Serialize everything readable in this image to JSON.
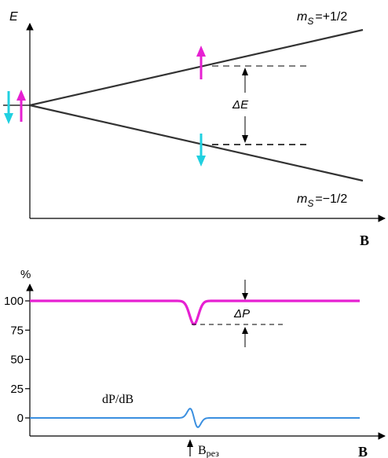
{
  "energy_diagram": {
    "y_axis_label": "E",
    "x_axis_label": "B",
    "upper_level": {
      "prefix": "m",
      "subscript": "S",
      "value": "=+1/2"
    },
    "lower_level": {
      "prefix": "m",
      "subscript": "S",
      "value": "=−1/2"
    },
    "gap_label": "ΔE",
    "colors": {
      "spin_up": "#e620d2",
      "spin_down": "#20d0e0",
      "lines": "#333333"
    }
  },
  "absorption_chart": {
    "y_unit_label": "%",
    "y_ticks": [
      "100",
      "75",
      "50",
      "25",
      "0"
    ],
    "x_axis_label": "B",
    "resonance_label": {
      "main": "B",
      "subscript": "рез"
    },
    "derivative_label": "dP/dB",
    "delta_label": "ΔP",
    "colors": {
      "power": "#e620d2",
      "derivative": "#3a8fe0"
    },
    "chart_data": {
      "type": "line",
      "ylim": [
        0,
        100
      ],
      "y_ticks": [
        0,
        25,
        50,
        75,
        100
      ],
      "series": [
        {
          "values": [
            100,
            100,
            100,
            80,
            100,
            100,
            100
          ]
        },
        {
          "values": [
            0,
            0,
            0,
            8,
            -8,
            0,
            0
          ]
        }
      ]
    }
  }
}
